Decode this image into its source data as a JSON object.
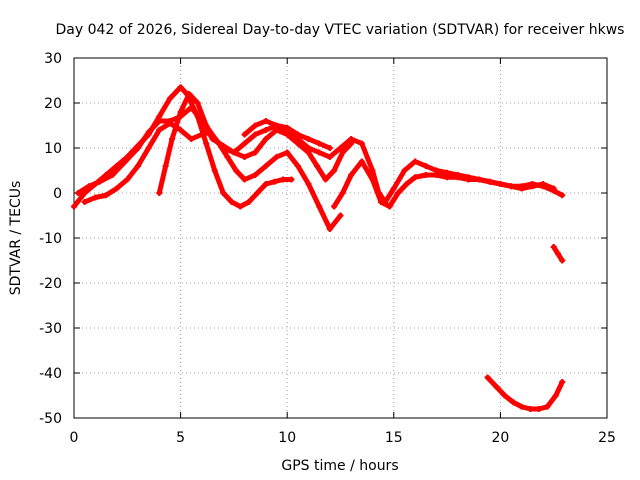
{
  "chart_data": {
    "type": "scatter",
    "title": "Day 042 of 2026, Sidereal Day-to-day VTEC variation (SDTVAR) for receiver hkws",
    "xlabel": "GPS time / hours",
    "ylabel": "SDTVAR / TECUs",
    "xlim": [
      0,
      25
    ],
    "ylim": [
      -50,
      30
    ],
    "xticks": [
      0,
      5,
      10,
      15,
      20,
      25
    ],
    "yticks": [
      -50,
      -40,
      -30,
      -20,
      -10,
      0,
      10,
      20,
      30
    ],
    "grid": true,
    "series_color": "#ff0000",
    "series": [
      {
        "name": "s1",
        "x": [
          0,
          0.5,
          1,
          1.5,
          2,
          2.5,
          3,
          3.5,
          4,
          4.5,
          5,
          5.3,
          5.8,
          6.2,
          6.6,
          7,
          7.4,
          7.8,
          8.2,
          8.6,
          9,
          9.4,
          9.8,
          10.2
        ],
        "y": [
          -3,
          0,
          2,
          4,
          6,
          8,
          10.5,
          13,
          17,
          21,
          23.5,
          22,
          17,
          11,
          5,
          0,
          -2,
          -3,
          -2,
          0,
          2,
          2.5,
          3,
          3
        ]
      },
      {
        "name": "s2",
        "x": [
          0.2,
          0.7,
          1.2,
          1.8,
          2.4,
          3,
          3.5,
          4,
          4.5,
          5,
          5.5,
          6,
          6.5,
          7,
          7.5,
          8,
          8.5,
          9,
          9.5,
          10,
          10.5,
          11,
          11.5,
          12
        ],
        "y": [
          0,
          1.5,
          2.5,
          4,
          7,
          10,
          13.5,
          16,
          16,
          17,
          19,
          16,
          12,
          10.5,
          9,
          11,
          13,
          14,
          15,
          14.5,
          13,
          12,
          11,
          10
        ]
      },
      {
        "name": "s3",
        "x": [
          0.5,
          1,
          1.5,
          2,
          2.5,
          3,
          3.5,
          4,
          4.5,
          5,
          5.5,
          6,
          6.4,
          6.8,
          7.2,
          7.6,
          8,
          8.5,
          9,
          9.5,
          10,
          10.5,
          11,
          11.5,
          12,
          12.5
        ],
        "y": [
          -2,
          -1,
          -0.5,
          1,
          3,
          6,
          10,
          14,
          15.5,
          14,
          12,
          13,
          13.5,
          11,
          8,
          5,
          3,
          4,
          6,
          8,
          9,
          6,
          2,
          -3,
          -8,
          -5
        ]
      },
      {
        "name": "s4",
        "x": [
          4,
          4.3,
          4.6,
          5,
          5.4,
          5.8,
          6.2,
          6.6,
          7,
          7.5,
          8,
          8.5,
          9,
          9.5,
          10,
          10.5,
          11,
          11.4,
          11.8,
          12.2,
          12.6,
          13
        ],
        "y": [
          0,
          6,
          12,
          18,
          22,
          20,
          15,
          12,
          10,
          9,
          8,
          9,
          12,
          14,
          13,
          11,
          9,
          6,
          3,
          5,
          9,
          11
        ]
      },
      {
        "name": "s5",
        "x": [
          8,
          8.5,
          9,
          9.5,
          10,
          10.5,
          11,
          11.5,
          12,
          12.5,
          13,
          13.5,
          14,
          14.3,
          14.6,
          15,
          15.5,
          16,
          16.5,
          17,
          17.5,
          18,
          18.5,
          19,
          19.5,
          20,
          20.5,
          21,
          21.5,
          22,
          22.5,
          22.9
        ],
        "y": [
          13,
          15,
          16,
          15,
          14,
          12,
          10,
          9,
          8,
          10,
          12,
          11,
          5,
          0,
          -2,
          1,
          5,
          7,
          6,
          5,
          4.5,
          4,
          3.5,
          3,
          2.5,
          2,
          1.5,
          1.5,
          2,
          1.5,
          0.5,
          -0.5
        ]
      },
      {
        "name": "s6",
        "x": [
          12.2,
          12.6,
          13,
          13.5,
          14,
          14.4,
          14.8,
          15.2,
          15.6,
          16,
          16.5,
          17,
          17.5,
          18,
          18.5,
          19,
          19.5,
          20,
          20.5,
          21,
          21.5,
          22,
          22.5
        ],
        "y": [
          -3,
          0,
          4,
          7,
          3,
          -2,
          -3,
          0,
          2,
          3.5,
          4,
          4,
          3.5,
          3.5,
          3,
          3,
          2.5,
          2,
          1.5,
          1,
          1.5,
          2,
          1
        ]
      },
      {
        "name": "s7",
        "x": [
          22.5,
          22.7,
          22.9
        ],
        "y": [
          -12,
          -13.5,
          -15
        ]
      },
      {
        "name": "s8",
        "x": [
          19.4,
          19.8,
          20.2,
          20.6,
          21,
          21.4,
          21.8,
          22.2,
          22.6,
          22.9
        ],
        "y": [
          -41,
          -43,
          -45,
          -46.5,
          -47.5,
          -48,
          -48,
          -47.5,
          -45,
          -42
        ]
      }
    ]
  }
}
